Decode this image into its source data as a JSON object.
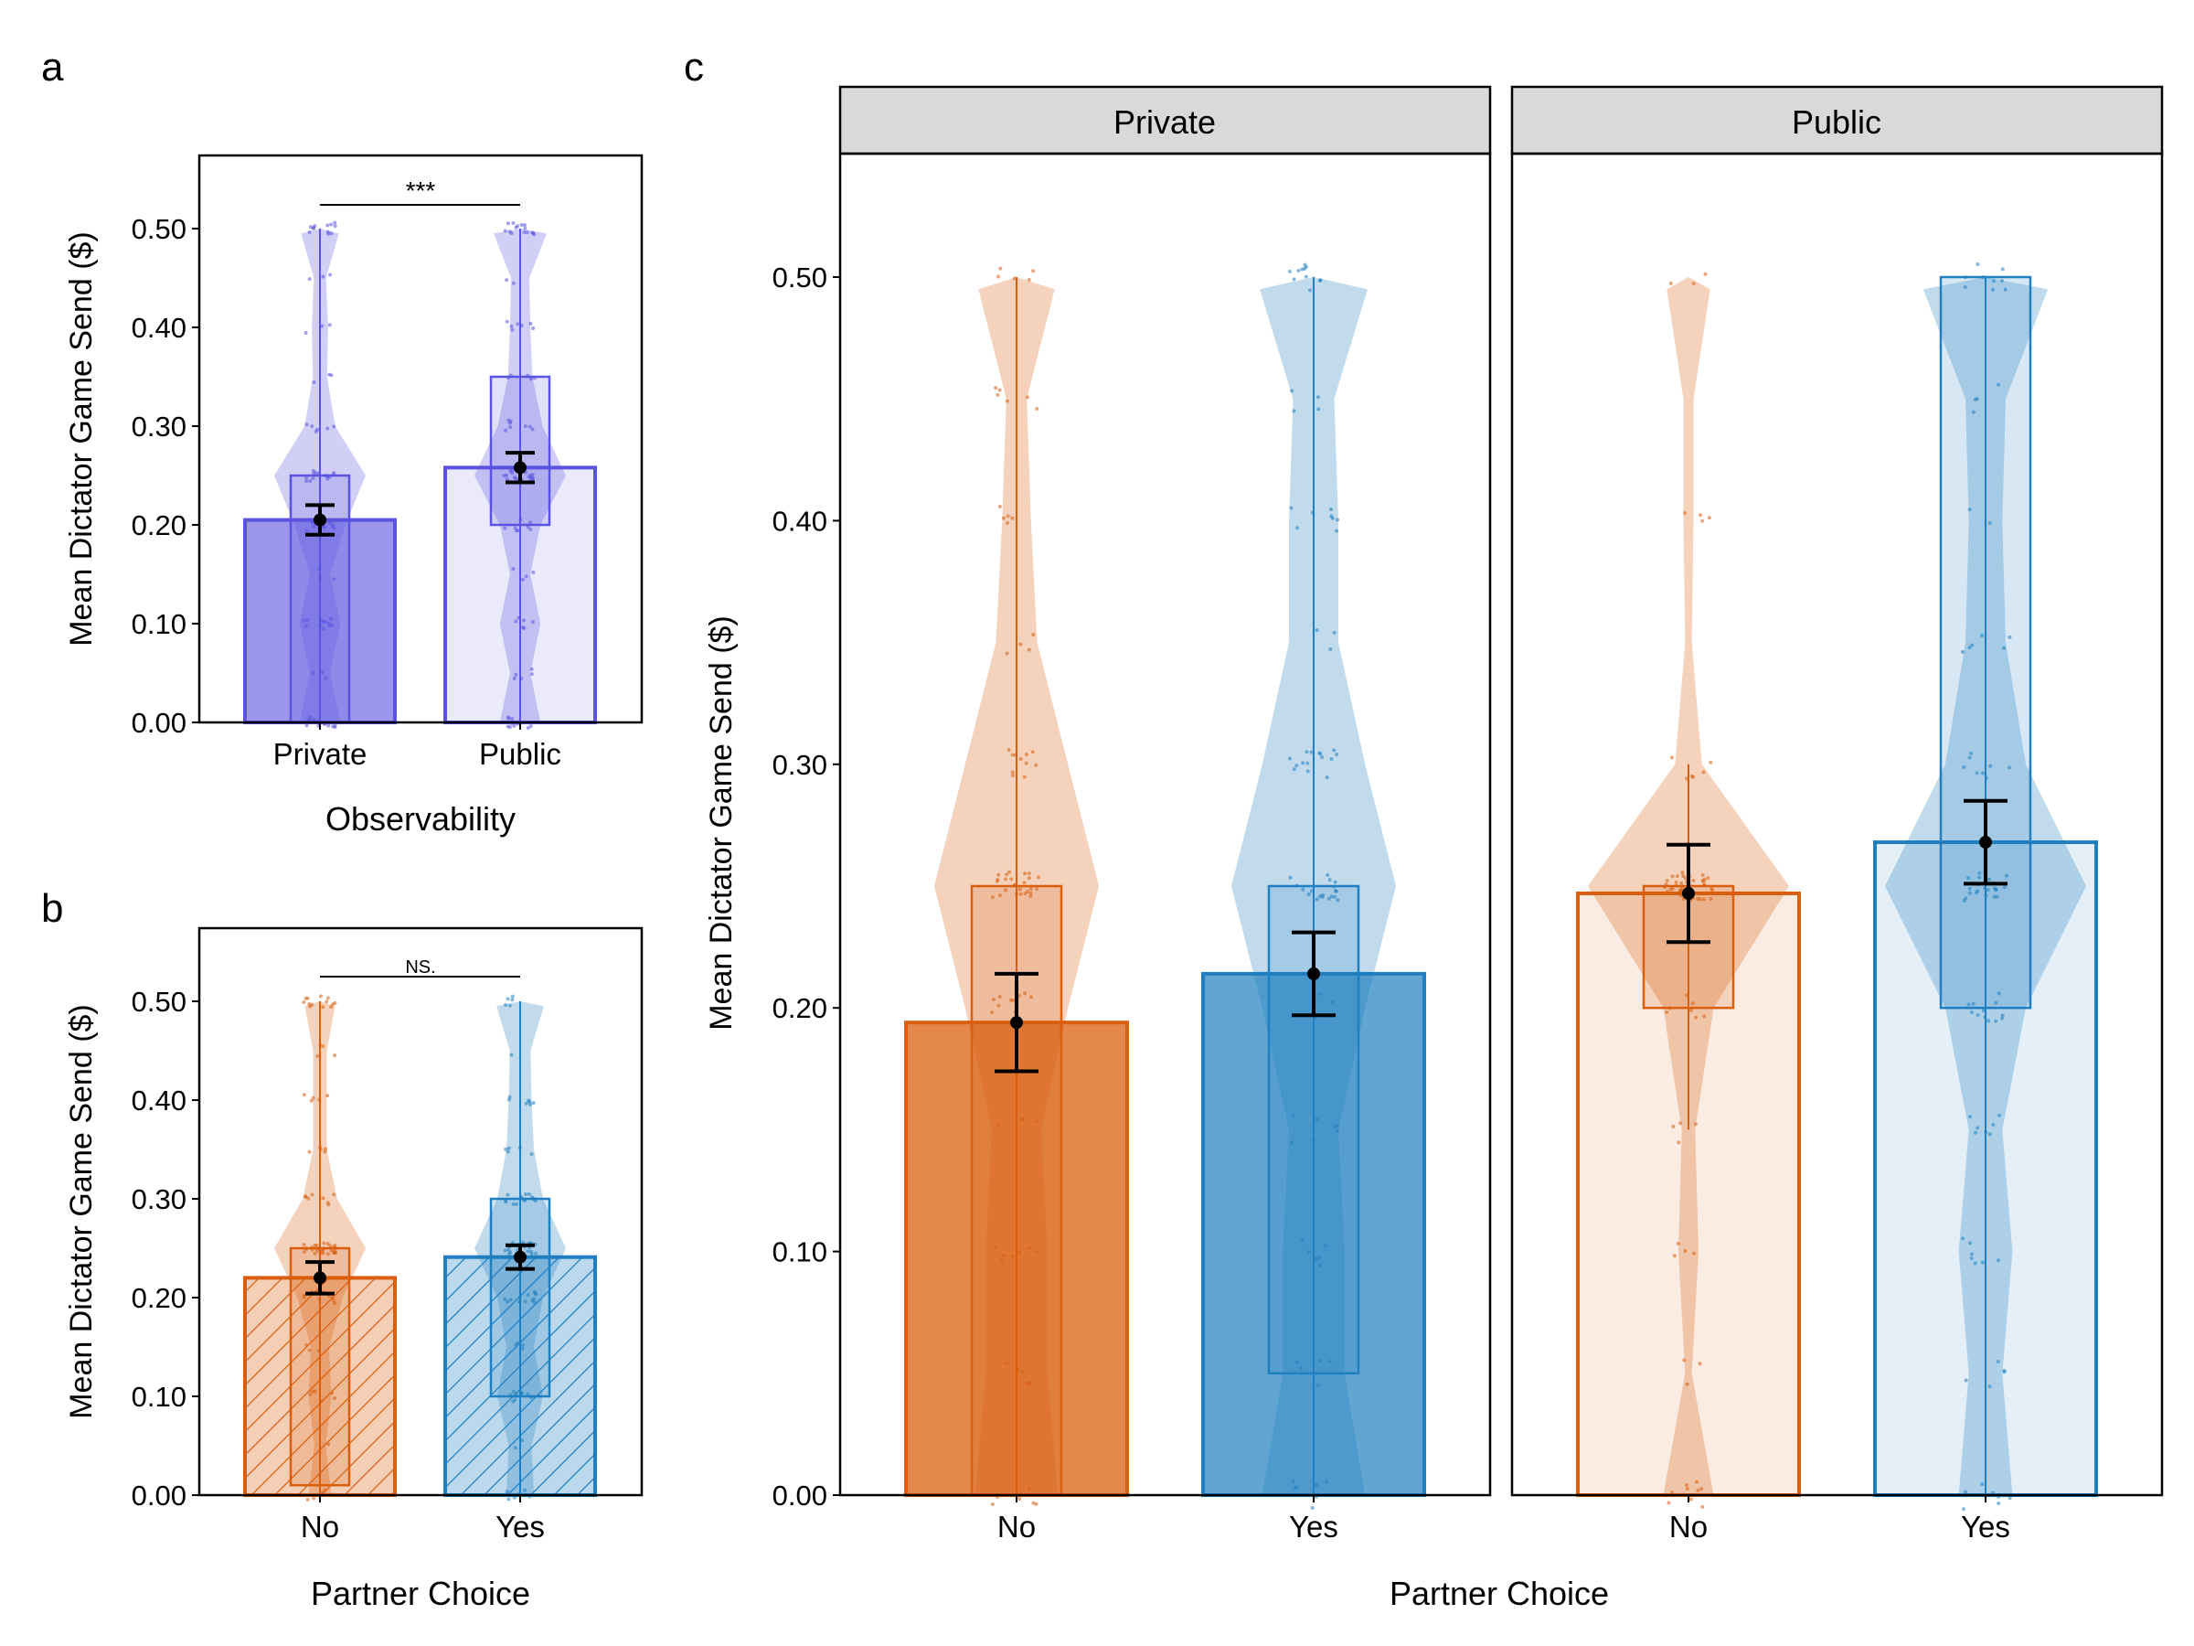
{
  "chart_data": [
    {
      "panel": "a",
      "type": "bar",
      "xlabel": "Observability",
      "ylabel": "Mean Dictator Game Send ($)",
      "ylim": [
        0,
        0.55
      ],
      "yticks": [
        0.0,
        0.1,
        0.2,
        0.3,
        0.4,
        0.5
      ],
      "ytick_labels": [
        "0.00",
        "0.10",
        "0.20",
        "0.30",
        "0.40",
        "0.50"
      ],
      "categories": [
        "Private",
        "Public"
      ],
      "means": [
        0.205,
        0.258
      ],
      "se": [
        0.015,
        0.015
      ],
      "box_q1": [
        0.0,
        0.2
      ],
      "box_q3": [
        0.25,
        0.35
      ],
      "whisker_low": [
        0.0,
        0.0
      ],
      "whisker_high": [
        0.5,
        0.5
      ],
      "significance": "***",
      "colors": [
        "#5a52e0",
        "#5a52e0"
      ],
      "fill_alpha": [
        0.6,
        0.12
      ]
    },
    {
      "panel": "b",
      "type": "bar",
      "xlabel": "Partner Choice",
      "ylabel": "Mean Dictator Game Send ($)",
      "ylim": [
        0,
        0.55
      ],
      "yticks": [
        0.0,
        0.1,
        0.2,
        0.3,
        0.4,
        0.5
      ],
      "ytick_labels": [
        "0.00",
        "0.10",
        "0.20",
        "0.30",
        "0.40",
        "0.50"
      ],
      "categories": [
        "No",
        "Yes"
      ],
      "means": [
        0.22,
        0.241
      ],
      "se": [
        0.016,
        0.012
      ],
      "box_q1": [
        0.01,
        0.1
      ],
      "box_q3": [
        0.25,
        0.3
      ],
      "whisker_low": [
        0.0,
        0.0
      ],
      "whisker_high": [
        0.5,
        0.5
      ],
      "significance": "NS.",
      "colors": [
        "#d95f0e",
        "#1f7fc0"
      ],
      "hatched": true
    },
    {
      "panel": "c",
      "type": "bar",
      "xlabel": "Partner Choice",
      "ylabel": "Mean Dictator Game Send ($)",
      "ylim": [
        0,
        0.55
      ],
      "yticks": [
        0.0,
        0.1,
        0.2,
        0.3,
        0.4,
        0.5
      ],
      "ytick_labels": [
        "0.00",
        "0.10",
        "0.20",
        "0.30",
        "0.40",
        "0.50"
      ],
      "facets": [
        {
          "label": "Private",
          "categories": [
            "No",
            "Yes"
          ],
          "means": [
            0.194,
            0.214
          ],
          "se": [
            0.02,
            0.017
          ],
          "box_q1": [
            0.0,
            0.05
          ],
          "box_q3": [
            0.25,
            0.25
          ],
          "whisker_low": [
            0.0,
            0.0
          ],
          "whisker_high": [
            0.5,
            0.5
          ],
          "colors": [
            "#d95f0e",
            "#1f7fc0"
          ],
          "fill_alpha": [
            0.75,
            0.7
          ]
        },
        {
          "label": "Public",
          "categories": [
            "No",
            "Yes"
          ],
          "means": [
            0.247,
            0.268
          ],
          "se": [
            0.02,
            0.017
          ],
          "box_q1": [
            0.2,
            0.2
          ],
          "box_q3": [
            0.25,
            0.5
          ],
          "whisker_low": [
            0.15,
            0.0
          ],
          "whisker_high": [
            0.3,
            0.5
          ],
          "colors": [
            "#d95f0e",
            "#1f7fc0"
          ],
          "fill_alpha": [
            0.12,
            0.12
          ]
        }
      ]
    }
  ],
  "panel_labels": [
    "a",
    "b",
    "c"
  ]
}
